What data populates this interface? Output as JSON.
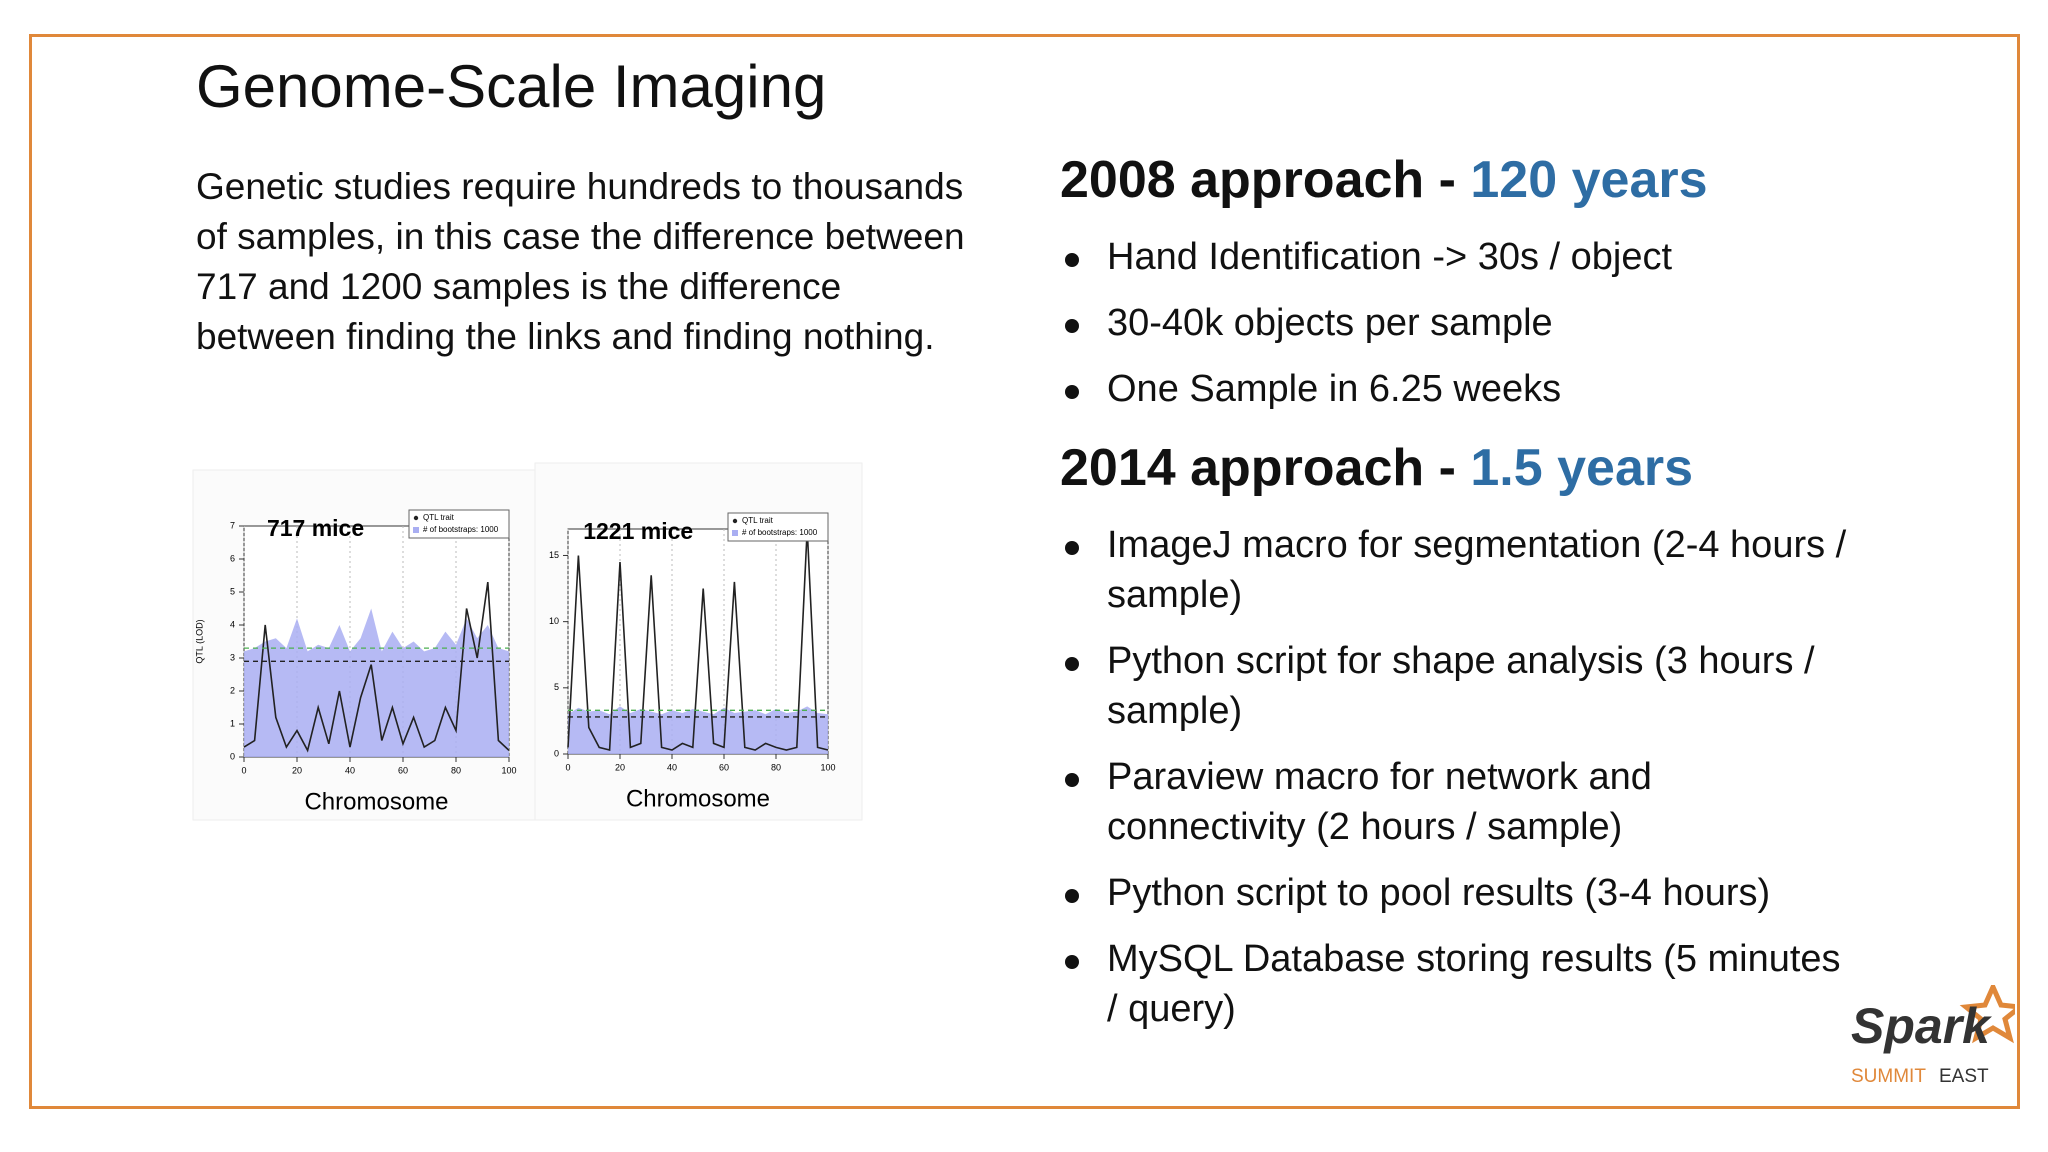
{
  "header": {
    "title": "Genome-Scale Imaging"
  },
  "intro": "Genetic studies require hundreds to thousands of samples, in this case the difference between 717 and 1200 samples is the difference between finding the links and finding nothing.",
  "sections": [
    {
      "heading": "2008 approach - ",
      "highlight": "120 years",
      "bullets": [
        "Hand Identification -> 30s / object",
        "30-40k objects per sample",
        "One Sample in 6.25 weeks"
      ]
    },
    {
      "heading": "2014 approach - ",
      "highlight": "1.5 years",
      "bullets": [
        "ImageJ macro for segmentation (2-4 hours / sample)",
        "Python script for shape analysis (3 hours / sample)",
        "Paraview macro for network and connectivity (2 hours / sample)",
        "Python script to pool results (3-4 hours)",
        "MySQL Database storing results (5 minutes / query)"
      ]
    }
  ],
  "logo": {
    "brand": "Spark",
    "summit": "SUMMIT",
    "east": "EAST"
  },
  "chart_data": [
    {
      "type": "line",
      "title": "717 mice",
      "x_label": "Chromosome",
      "y_label": "QTL (LOD)",
      "x": [
        0,
        4,
        8,
        12,
        16,
        20,
        24,
        28,
        32,
        36,
        40,
        44,
        48,
        52,
        56,
        60,
        64,
        68,
        72,
        76,
        80,
        84,
        88,
        92,
        96,
        100
      ],
      "series": [
        {
          "name": "QTL trait",
          "color": "#222222",
          "style": "line",
          "values": [
            0.3,
            0.5,
            4.0,
            1.2,
            0.3,
            0.8,
            0.2,
            1.5,
            0.4,
            2.0,
            0.3,
            1.8,
            2.8,
            0.5,
            1.5,
            0.4,
            1.2,
            0.3,
            0.5,
            1.5,
            0.8,
            4.5,
            3.0,
            5.3,
            0.5,
            0.2
          ]
        },
        {
          "name": "# of bootstraps: 1000",
          "color": "#a9aef2",
          "style": "area",
          "values": [
            3.2,
            3.3,
            3.5,
            3.6,
            3.3,
            4.2,
            3.2,
            3.4,
            3.3,
            4.0,
            3.2,
            3.6,
            4.5,
            3.2,
            3.8,
            3.3,
            3.5,
            3.2,
            3.3,
            3.8,
            3.4,
            4.2,
            3.6,
            4.0,
            3.3,
            3.2
          ]
        }
      ],
      "reference_lines": [
        2.9,
        3.3
      ],
      "xlim": [
        0,
        100
      ],
      "xticks": [
        0,
        20,
        40,
        60,
        80,
        100
      ],
      "ylim": [
        0,
        7
      ],
      "yticks": [
        0,
        1,
        2,
        3,
        4,
        5,
        6,
        7
      ],
      "grid": true
    },
    {
      "type": "line",
      "title": "1221 mice",
      "x_label": "Chromosome",
      "x": [
        0,
        4,
        8,
        12,
        16,
        20,
        24,
        28,
        32,
        36,
        40,
        44,
        48,
        52,
        56,
        60,
        64,
        68,
        72,
        76,
        80,
        84,
        88,
        92,
        96,
        100
      ],
      "series": [
        {
          "name": "QTL trait",
          "color": "#222222",
          "style": "line",
          "values": [
            0.5,
            15.0,
            2.0,
            0.5,
            0.3,
            14.5,
            0.5,
            0.8,
            13.5,
            0.5,
            0.3,
            0.8,
            0.5,
            12.5,
            0.8,
            0.5,
            13.0,
            0.5,
            0.3,
            0.8,
            0.5,
            0.3,
            0.5,
            17.0,
            0.5,
            0.3
          ]
        },
        {
          "name": "# of bootstraps: 1000",
          "color": "#a9aef2",
          "style": "area",
          "values": [
            3.0,
            3.5,
            3.2,
            3.3,
            3.0,
            3.6,
            3.1,
            3.4,
            3.2,
            3.0,
            3.3,
            3.1,
            3.4,
            3.2,
            3.0,
            3.5,
            3.1,
            3.2,
            3.3,
            3.0,
            3.4,
            3.1,
            3.2,
            3.6,
            3.1,
            3.0
          ]
        }
      ],
      "reference_lines": [
        2.8,
        3.3
      ],
      "xlim": [
        0,
        100
      ],
      "xticks": [
        0,
        20,
        40,
        60,
        80,
        100
      ],
      "ylim": [
        0,
        17
      ],
      "yticks": [
        0,
        5,
        10,
        15
      ],
      "grid": true
    }
  ]
}
